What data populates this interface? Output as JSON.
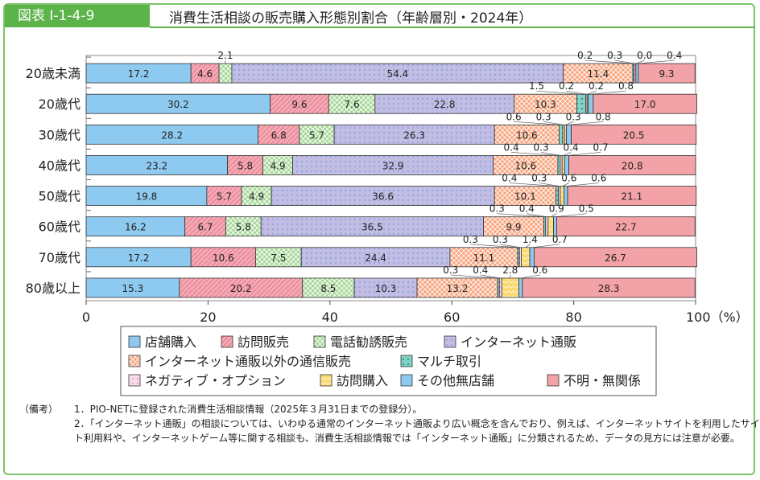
{
  "header": {
    "figure_no": "図表 I-1-4-9",
    "title": "消費生活相談の販売購入形態別割合（年齢層別・2024年）"
  },
  "chart_data": {
    "type": "bar",
    "orientation": "horizontal",
    "stacked": true,
    "categories": [
      "20歳未満",
      "20歳代",
      "30歳代",
      "40歳代",
      "50歳代",
      "60歳代",
      "70歳代",
      "80歳以上"
    ],
    "xlim": [
      0,
      100
    ],
    "xticks": [
      "0",
      "20",
      "40",
      "60",
      "80",
      "100（%）"
    ],
    "series": [
      {
        "name": "店舗購入",
        "color": "#8ecaf0",
        "pattern": "plain",
        "values": [
          17.2,
          30.2,
          28.2,
          23.2,
          19.8,
          16.2,
          17.2,
          15.3
        ]
      },
      {
        "name": "訪問販売",
        "color": "#f5a9b5",
        "pattern": "hatch",
        "values": [
          4.6,
          9.6,
          6.8,
          5.8,
          5.7,
          6.7,
          10.6,
          20.2
        ]
      },
      {
        "name": "電話勧誘販売",
        "color": "#a9d99a",
        "pattern": "check",
        "values": [
          2.1,
          7.6,
          5.7,
          4.9,
          4.9,
          5.8,
          7.5,
          8.5
        ]
      },
      {
        "name": "インターネット通販",
        "color": "#c3bde3",
        "pattern": "dots",
        "values": [
          54.4,
          22.8,
          26.3,
          32.9,
          36.6,
          36.5,
          24.4,
          10.3
        ]
      },
      {
        "name": "インターネット通販以外の通信販売",
        "color": "#f8a57f",
        "pattern": "cross",
        "values": [
          11.4,
          10.3,
          10.6,
          10.6,
          10.1,
          9.9,
          11.1,
          13.2
        ]
      },
      {
        "name": "マルチ取引",
        "color": "#82d2c6",
        "pattern": "square",
        "values": [
          0.2,
          1.5,
          0.6,
          0.4,
          0.4,
          0.3,
          0.3,
          0.3
        ]
      },
      {
        "name": "ネガティブ・オプション",
        "color": "#f9dcea",
        "pattern": "dots2",
        "values": [
          0.3,
          0.2,
          0.3,
          0.3,
          0.3,
          0.4,
          0.3,
          0.4
        ]
      },
      {
        "name": "訪問購入",
        "color": "#fcd870",
        "pattern": "wave",
        "values": [
          0.0,
          0.2,
          0.3,
          0.4,
          0.6,
          0.9,
          1.4,
          2.8
        ]
      },
      {
        "name": "その他無店舗",
        "color": "#8ecaf0",
        "pattern": "plain",
        "values": [
          0.4,
          0.8,
          0.8,
          0.7,
          0.6,
          0.5,
          0.7,
          0.6
        ]
      },
      {
        "name": "不明・無関係",
        "color": "#f3a3a7",
        "pattern": "plain",
        "values": [
          9.3,
          17.0,
          20.5,
          20.8,
          21.1,
          22.7,
          26.7,
          28.3
        ]
      }
    ],
    "small_label_series": [
      5,
      6,
      7,
      8
    ],
    "small_labels": [
      [
        "0.2",
        "0.3",
        "0.0",
        "0.4"
      ],
      [
        "1.5",
        "0.2",
        "0.2",
        "0.8"
      ],
      [
        "0.6",
        "0.3",
        "0.3",
        "0.8"
      ],
      [
        "0.4",
        "0.3",
        "0.4",
        "0.7"
      ],
      [
        "0.4",
        "0.3",
        "0.6",
        "0.6"
      ],
      [
        "0.3",
        "0.4",
        "0.9",
        "0.5"
      ],
      [
        "0.3",
        "0.3",
        "1.4",
        "0.7"
      ],
      [
        "0.3",
        "0.4",
        "2.8",
        "0.6"
      ]
    ],
    "above_label_first_row": "2.1",
    "legend": "bottom"
  },
  "notes": {
    "head": "（備考）",
    "items": [
      "1．PIO-NETに登録された消費生活相談情報（2025年３月31日までの登録分）。",
      "2．「インターネット通販」の相談については、いわゆる通常のインターネット通販より広い概念を含んでおり、例えば、インターネットサイトを利用したサイト利用料や、インターネットゲーム等に関する相談も、消費生活相談情報では「インターネット通販」に分類されるため、データの見方には注意が必要。"
    ]
  }
}
